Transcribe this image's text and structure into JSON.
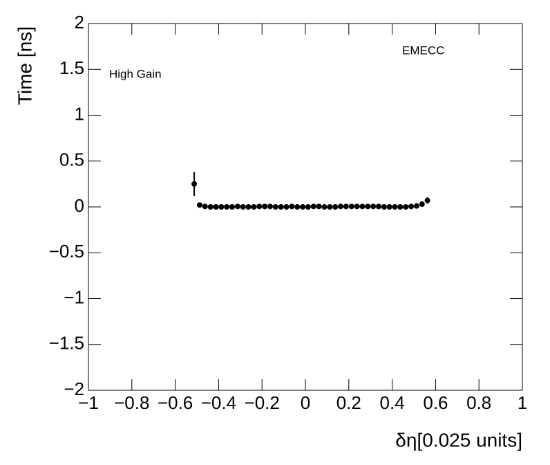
{
  "chart_data": {
    "type": "scatter",
    "xlabel": "δη[0.025 units]",
    "ylabel": "Time [ns]",
    "annotations": [
      "High Gain",
      "EMECC"
    ],
    "color": "#000000",
    "xlim": [
      -1,
      1
    ],
    "ylim": [
      -2,
      2
    ],
    "xticks": [
      {
        "value": -1,
        "label": "−1"
      },
      {
        "value": -0.8,
        "label": "−0.8"
      },
      {
        "value": -0.6,
        "label": "−0.6"
      },
      {
        "value": -0.4,
        "label": "−0.4"
      },
      {
        "value": -0.2,
        "label": "−0.2"
      },
      0,
      0.2,
      0.4,
      0.6,
      0.8,
      1
    ],
    "yticks": [
      {
        "value": -2,
        "label": "−2"
      },
      {
        "value": -1.5,
        "label": "−1.5"
      },
      {
        "value": -1,
        "label": "−1"
      },
      {
        "value": -0.5,
        "label": "−0.5"
      },
      0,
      0.5,
      1,
      1.5,
      2
    ],
    "x": [
      -0.5125,
      -0.4875,
      -0.4625,
      -0.4375,
      -0.4125,
      -0.3875,
      -0.3625,
      -0.3375,
      -0.3125,
      -0.2875,
      -0.2625,
      -0.2375,
      -0.2125,
      -0.1875,
      -0.1625,
      -0.1375,
      -0.1125,
      -0.0875,
      -0.0625,
      -0.0375,
      -0.0125,
      0.0125,
      0.0375,
      0.0625,
      0.0875,
      0.1125,
      0.1375,
      0.1625,
      0.1875,
      0.2125,
      0.2375,
      0.2625,
      0.2875,
      0.3125,
      0.3375,
      0.3625,
      0.3875,
      0.4125,
      0.4375,
      0.4625,
      0.4875,
      0.5125,
      0.5375,
      0.5625
    ],
    "values": [
      0.25,
      0.02,
      0.005,
      0,
      0,
      0,
      0,
      0,
      0.005,
      0,
      0,
      0,
      0.005,
      0.005,
      0.005,
      0,
      0,
      0,
      0.005,
      0,
      0,
      0,
      0.005,
      0.005,
      0,
      0,
      0,
      0.005,
      0.005,
      0.005,
      0.005,
      0.005,
      0.005,
      0.005,
      0.005,
      0,
      0,
      0,
      0,
      0,
      0.005,
      0.01,
      0.03,
      0.07
    ],
    "errors": [
      0.13,
      0.015,
      0.01,
      0.008,
      0.008,
      0.008,
      0.008,
      0.008,
      0.008,
      0.008,
      0.008,
      0.008,
      0.008,
      0.008,
      0.008,
      0.008,
      0.008,
      0.008,
      0.008,
      0.008,
      0.008,
      0.008,
      0.008,
      0.008,
      0.008,
      0.008,
      0.008,
      0.008,
      0.008,
      0.008,
      0.008,
      0.008,
      0.008,
      0.008,
      0.008,
      0.008,
      0.008,
      0.008,
      0.008,
      0.008,
      0.01,
      0.012,
      0.02,
      0.035
    ]
  }
}
